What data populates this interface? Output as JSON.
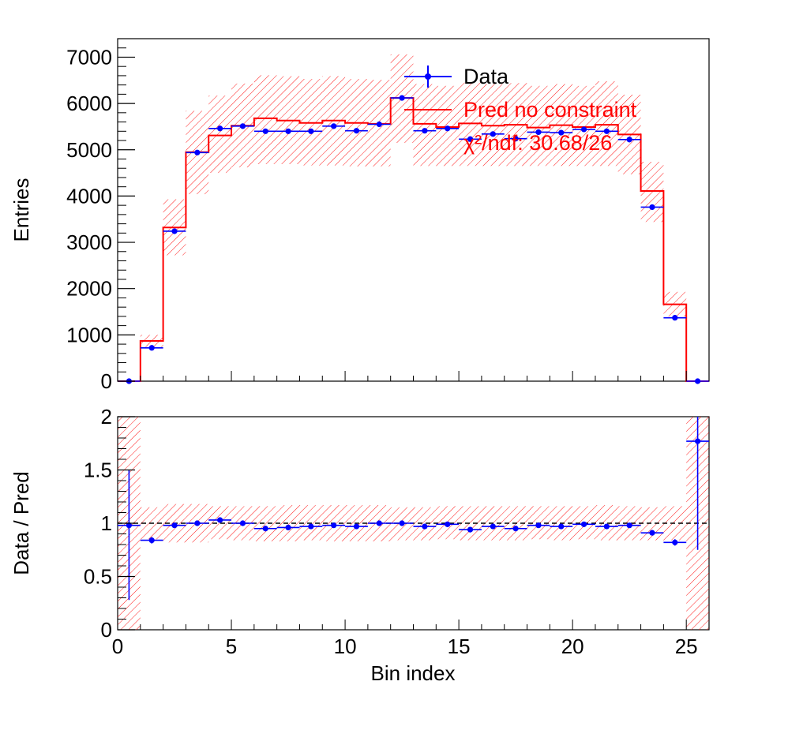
{
  "chart_data": [
    {
      "panel": "top",
      "type": "histogram",
      "xlabel": "",
      "ylabel": "Entries",
      "xlim": [
        0,
        26
      ],
      "ylim": [
        0,
        7400
      ],
      "yticks": [
        0,
        1000,
        2000,
        3000,
        4000,
        5000,
        6000,
        7000
      ],
      "ytick_labels": [
        "0",
        "1000",
        "2000",
        "3000",
        "4000",
        "5000",
        "6000",
        "7000"
      ],
      "legend": {
        "placement": "top-right",
        "entries": [
          {
            "label": "Data",
            "color": "#0000ff"
          },
          {
            "label": "Pred no constraint",
            "color": "#ff0000"
          }
        ],
        "chi2_label": "χ²/ndf: 30.68/26"
      },
      "bins": [
        0,
        1,
        2,
        3,
        4,
        5,
        6,
        7,
        8,
        9,
        10,
        11,
        12,
        13,
        14,
        15,
        16,
        17,
        18,
        19,
        20,
        21,
        22,
        23,
        24,
        25,
        26
      ],
      "pred": [
        0,
        870,
        3320,
        4950,
        5310,
        5520,
        5680,
        5630,
        5580,
        5630,
        5580,
        5560,
        6120,
        5560,
        5490,
        5570,
        5520,
        5540,
        5480,
        5530,
        5490,
        5540,
        5330,
        4110,
        1660,
        0
      ],
      "pred_band_low": [
        0,
        740,
        2720,
        4040,
        4500,
        4620,
        4690,
        4690,
        4660,
        4660,
        4640,
        4640,
        5150,
        4650,
        4650,
        4650,
        4650,
        4650,
        4650,
        4650,
        4650,
        4650,
        4470,
        3440,
        1400,
        0
      ],
      "pred_band_high": [
        0,
        1000,
        3930,
        5840,
        6170,
        6430,
        6610,
        6590,
        6530,
        6590,
        6530,
        6510,
        7060,
        6420,
        6380,
        6450,
        6420,
        6440,
        6380,
        6420,
        6380,
        6480,
        6190,
        4740,
        1930,
        0
      ],
      "data_x": [
        0.5,
        1.5,
        2.5,
        3.5,
        4.5,
        5.5,
        6.5,
        7.5,
        8.5,
        9.5,
        10.5,
        11.5,
        12.5,
        13.5,
        14.5,
        15.5,
        16.5,
        17.5,
        18.5,
        19.5,
        20.5,
        21.5,
        22.5,
        23.5,
        24.5,
        25.5
      ],
      "data": [
        0,
        720,
        3240,
        4940,
        5460,
        5510,
        5400,
        5400,
        5400,
        5510,
        5410,
        5550,
        6120,
        5410,
        5460,
        5230,
        5340,
        5240,
        5380,
        5370,
        5440,
        5400,
        5220,
        3760,
        1370,
        0
      ]
    },
    {
      "panel": "bottom",
      "type": "ratio",
      "xlabel": "Bin index",
      "ylabel": "Data / Pred",
      "xlim": [
        0,
        26
      ],
      "ylim": [
        0,
        2
      ],
      "xticks": [
        0,
        5,
        10,
        15,
        20,
        25
      ],
      "xtick_labels": [
        "0",
        "5",
        "10",
        "15",
        "20",
        "25"
      ],
      "yticks": [
        0,
        0.5,
        1,
        1.5,
        2
      ],
      "ytick_labels": [
        "0",
        "0.5",
        "1",
        "1.5",
        "2"
      ],
      "reference_line": 1,
      "band_low": [
        0,
        0.85,
        0.82,
        0.82,
        0.85,
        0.84,
        0.83,
        0.83,
        0.84,
        0.83,
        0.83,
        0.83,
        0.84,
        0.84,
        0.85,
        0.84,
        0.84,
        0.84,
        0.85,
        0.84,
        0.85,
        0.84,
        0.84,
        0.84,
        0.84,
        0
      ],
      "band_high": [
        2,
        1.15,
        1.18,
        1.18,
        1.16,
        1.16,
        1.16,
        1.17,
        1.17,
        1.17,
        1.17,
        1.17,
        1.15,
        1.15,
        1.16,
        1.16,
        1.16,
        1.16,
        1.16,
        1.16,
        1.16,
        1.17,
        1.16,
        1.15,
        1.16,
        2
      ],
      "ratio_x": [
        0.5,
        1.5,
        2.5,
        3.5,
        4.5,
        5.5,
        6.5,
        7.5,
        8.5,
        9.5,
        10.5,
        11.5,
        12.5,
        13.5,
        14.5,
        15.5,
        16.5,
        17.5,
        18.5,
        19.5,
        20.5,
        21.5,
        22.5,
        23.5,
        24.5,
        25.5
      ],
      "ratio": [
        0.98,
        0.84,
        0.98,
        1.0,
        1.03,
        1.0,
        0.95,
        0.96,
        0.97,
        0.98,
        0.97,
        1.0,
        1.0,
        0.97,
        0.99,
        0.94,
        0.97,
        0.95,
        0.98,
        0.97,
        0.99,
        0.97,
        0.98,
        0.91,
        0.82,
        1.77
      ],
      "ratio_err_low": [
        0.7,
        0.03,
        0.02,
        0.02,
        0.02,
        0.02,
        0.02,
        0.02,
        0.02,
        0.02,
        0.02,
        0.02,
        0.02,
        0.02,
        0.02,
        0.02,
        0.02,
        0.02,
        0.02,
        0.02,
        0.02,
        0.02,
        0.02,
        0.02,
        0.03,
        1.02
      ],
      "ratio_err_high": [
        0.52,
        0.03,
        0.02,
        0.02,
        0.02,
        0.02,
        0.02,
        0.02,
        0.02,
        0.02,
        0.02,
        0.02,
        0.02,
        0.02,
        0.02,
        0.02,
        0.02,
        0.02,
        0.02,
        0.02,
        0.02,
        0.02,
        0.02,
        0.02,
        0.03,
        0.3
      ]
    }
  ],
  "colors": {
    "data": "#0000ff",
    "pred": "#ff0000",
    "band": "#ff0000",
    "axis": "#000000"
  }
}
